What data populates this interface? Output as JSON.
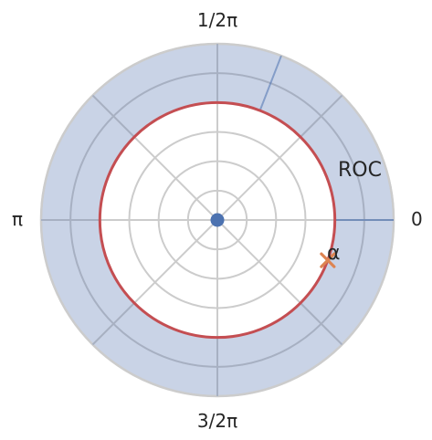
{
  "chart_data": {
    "type": "polar",
    "angle_tick_labels": [
      "0",
      "1/2π",
      "π",
      "3/2π"
    ],
    "radius_range": [
      0,
      6
    ],
    "radial_gridlines": [
      1,
      2,
      3,
      4,
      5,
      6
    ],
    "grid": true,
    "roc": {
      "label": "ROC",
      "inner_radius": 4,
      "outer_radius": 6,
      "fill_color": "#c9d3e6"
    },
    "unit_circle": {
      "radius": 4,
      "color": "#c44e52"
    },
    "pole": {
      "radius": 0,
      "angle": 0,
      "color": "#4c72b0"
    },
    "zero": {
      "label": "α",
      "radius": 4,
      "angle_rad": -0.35,
      "color": "#dd8452"
    },
    "rays": [
      {
        "angle_rad": 0,
        "from_radius": 4,
        "to_radius": 6,
        "color": "#4c72b0"
      },
      {
        "angle_rad": 1.2,
        "from_radius": 4,
        "to_radius": 6,
        "color": "#4c72b0"
      }
    ]
  }
}
